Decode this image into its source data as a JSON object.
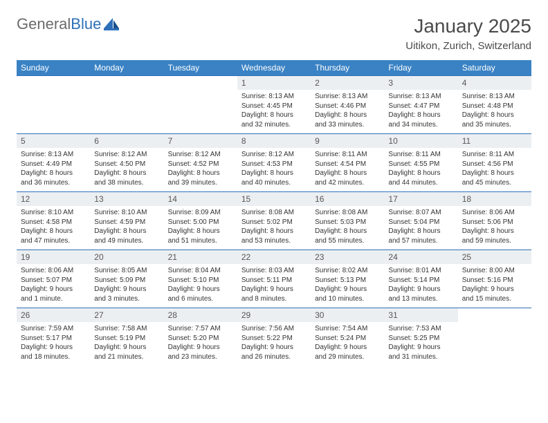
{
  "brand": {
    "word1": "General",
    "word2": "Blue"
  },
  "header": {
    "title": "January 2025",
    "location": "Uitikon, Zurich, Switzerland"
  },
  "colors": {
    "header_bg": "#3a82c4",
    "row_border": "#2d6fb8",
    "daynum_bg": "#eceff1",
    "text": "#333333",
    "title_text": "#4a4a4a"
  },
  "weekdays": [
    "Sunday",
    "Monday",
    "Tuesday",
    "Wednesday",
    "Thursday",
    "Friday",
    "Saturday"
  ],
  "weeks": [
    [
      {
        "empty": true
      },
      {
        "empty": true
      },
      {
        "empty": true
      },
      {
        "n": "1",
        "sr": "8:13 AM",
        "ss": "4:45 PM",
        "dl": "8 hours and 32 minutes."
      },
      {
        "n": "2",
        "sr": "8:13 AM",
        "ss": "4:46 PM",
        "dl": "8 hours and 33 minutes."
      },
      {
        "n": "3",
        "sr": "8:13 AM",
        "ss": "4:47 PM",
        "dl": "8 hours and 34 minutes."
      },
      {
        "n": "4",
        "sr": "8:13 AM",
        "ss": "4:48 PM",
        "dl": "8 hours and 35 minutes."
      }
    ],
    [
      {
        "n": "5",
        "sr": "8:13 AM",
        "ss": "4:49 PM",
        "dl": "8 hours and 36 minutes."
      },
      {
        "n": "6",
        "sr": "8:12 AM",
        "ss": "4:50 PM",
        "dl": "8 hours and 38 minutes."
      },
      {
        "n": "7",
        "sr": "8:12 AM",
        "ss": "4:52 PM",
        "dl": "8 hours and 39 minutes."
      },
      {
        "n": "8",
        "sr": "8:12 AM",
        "ss": "4:53 PM",
        "dl": "8 hours and 40 minutes."
      },
      {
        "n": "9",
        "sr": "8:11 AM",
        "ss": "4:54 PM",
        "dl": "8 hours and 42 minutes."
      },
      {
        "n": "10",
        "sr": "8:11 AM",
        "ss": "4:55 PM",
        "dl": "8 hours and 44 minutes."
      },
      {
        "n": "11",
        "sr": "8:11 AM",
        "ss": "4:56 PM",
        "dl": "8 hours and 45 minutes."
      }
    ],
    [
      {
        "n": "12",
        "sr": "8:10 AM",
        "ss": "4:58 PM",
        "dl": "8 hours and 47 minutes."
      },
      {
        "n": "13",
        "sr": "8:10 AM",
        "ss": "4:59 PM",
        "dl": "8 hours and 49 minutes."
      },
      {
        "n": "14",
        "sr": "8:09 AM",
        "ss": "5:00 PM",
        "dl": "8 hours and 51 minutes."
      },
      {
        "n": "15",
        "sr": "8:08 AM",
        "ss": "5:02 PM",
        "dl": "8 hours and 53 minutes."
      },
      {
        "n": "16",
        "sr": "8:08 AM",
        "ss": "5:03 PM",
        "dl": "8 hours and 55 minutes."
      },
      {
        "n": "17",
        "sr": "8:07 AM",
        "ss": "5:04 PM",
        "dl": "8 hours and 57 minutes."
      },
      {
        "n": "18",
        "sr": "8:06 AM",
        "ss": "5:06 PM",
        "dl": "8 hours and 59 minutes."
      }
    ],
    [
      {
        "n": "19",
        "sr": "8:06 AM",
        "ss": "5:07 PM",
        "dl": "9 hours and 1 minute."
      },
      {
        "n": "20",
        "sr": "8:05 AM",
        "ss": "5:09 PM",
        "dl": "9 hours and 3 minutes."
      },
      {
        "n": "21",
        "sr": "8:04 AM",
        "ss": "5:10 PM",
        "dl": "9 hours and 6 minutes."
      },
      {
        "n": "22",
        "sr": "8:03 AM",
        "ss": "5:11 PM",
        "dl": "9 hours and 8 minutes."
      },
      {
        "n": "23",
        "sr": "8:02 AM",
        "ss": "5:13 PM",
        "dl": "9 hours and 10 minutes."
      },
      {
        "n": "24",
        "sr": "8:01 AM",
        "ss": "5:14 PM",
        "dl": "9 hours and 13 minutes."
      },
      {
        "n": "25",
        "sr": "8:00 AM",
        "ss": "5:16 PM",
        "dl": "9 hours and 15 minutes."
      }
    ],
    [
      {
        "n": "26",
        "sr": "7:59 AM",
        "ss": "5:17 PM",
        "dl": "9 hours and 18 minutes."
      },
      {
        "n": "27",
        "sr": "7:58 AM",
        "ss": "5:19 PM",
        "dl": "9 hours and 21 minutes."
      },
      {
        "n": "28",
        "sr": "7:57 AM",
        "ss": "5:20 PM",
        "dl": "9 hours and 23 minutes."
      },
      {
        "n": "29",
        "sr": "7:56 AM",
        "ss": "5:22 PM",
        "dl": "9 hours and 26 minutes."
      },
      {
        "n": "30",
        "sr": "7:54 AM",
        "ss": "5:24 PM",
        "dl": "9 hours and 29 minutes."
      },
      {
        "n": "31",
        "sr": "7:53 AM",
        "ss": "5:25 PM",
        "dl": "9 hours and 31 minutes."
      },
      {
        "empty": true
      }
    ]
  ],
  "labels": {
    "sunrise": "Sunrise:",
    "sunset": "Sunset:",
    "daylight": "Daylight:"
  }
}
